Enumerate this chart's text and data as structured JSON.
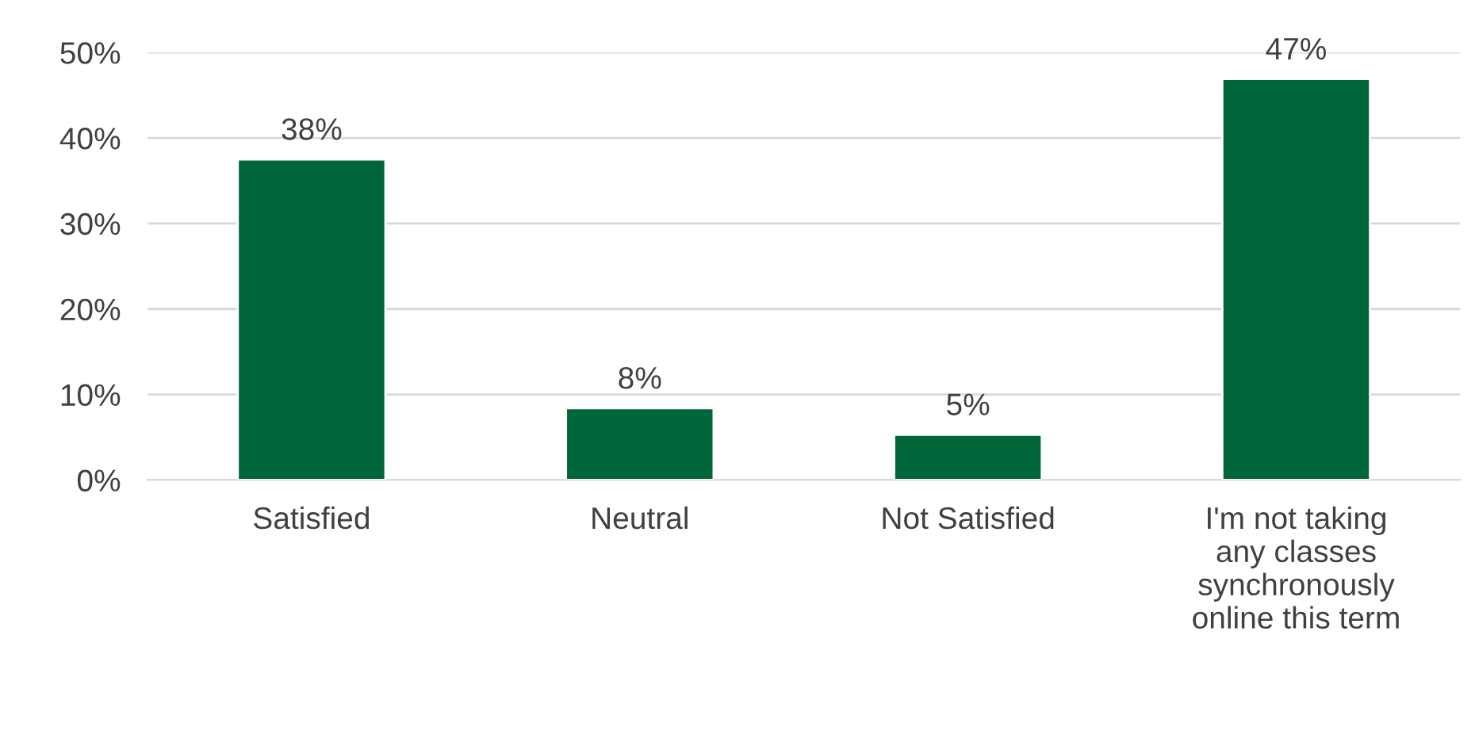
{
  "chart_data": {
    "type": "bar",
    "categories": [
      "Satisfied",
      "Neutral",
      "Not Satisfied",
      "I'm not taking\nany classes\nsynchronously\nonline this term"
    ],
    "values": [
      37.5,
      8.4,
      5.3,
      46.9
    ],
    "value_labels": [
      "38%",
      "8%",
      "5%",
      "47%"
    ],
    "color": "#00663a",
    "ylim": [
      0,
      50
    ],
    "yticks": [
      {
        "value": 0,
        "label": "0%"
      },
      {
        "value": 10,
        "label": "10%"
      },
      {
        "value": 20,
        "label": "20%"
      },
      {
        "value": 30,
        "label": "30%"
      },
      {
        "value": 40,
        "label": "40%"
      },
      {
        "value": 50,
        "label": "50%"
      }
    ],
    "grid": "y"
  }
}
